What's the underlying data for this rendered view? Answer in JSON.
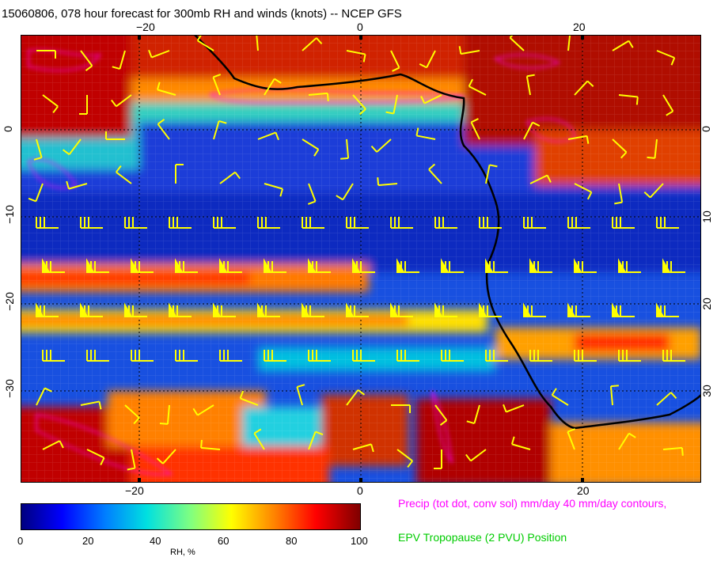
{
  "title": "15060806, 078 hour forecast for 300mb RH and winds (knots) -- NCEP GFS",
  "axes": {
    "lon_ticks_top": [
      "−20",
      "0",
      "20"
    ],
    "lon_ticks_bottom": [
      "−20",
      "0",
      "20"
    ],
    "lat_ticks_left": [
      "0",
      "−10",
      "−20",
      "−30"
    ],
    "lat_ticks_right": [
      "0",
      "10",
      "20",
      "30"
    ]
  },
  "colorbar": {
    "labels": [
      "0",
      "20",
      "40",
      "60",
      "80",
      "100"
    ],
    "unit": "RH, %",
    "colors": [
      "#00007f",
      "#0000ff",
      "#0080ff",
      "#00e0e0",
      "#80ff80",
      "#ffff00",
      "#ff8000",
      "#ff0000",
      "#7f0000"
    ]
  },
  "legend": {
    "precip": "Precip (tot dot, conv sol) mm/day 40 mm/day contours,",
    "epv": "EPV Tropopause (2 PVU) Position"
  },
  "colors": {
    "wind_barbs": "#ffff00",
    "precip_contours": "#ff00ff",
    "coastline": "#000000",
    "epv": "#00cc00"
  }
}
